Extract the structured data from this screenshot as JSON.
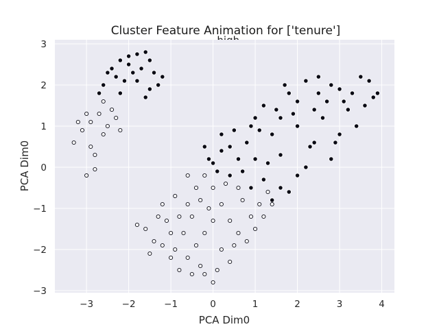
{
  "chart_data": {
    "type": "scatter",
    "title": "Cluster Feature Animation for ['tenure']",
    "subtitle": "_high",
    "xlabel": "PCA Dim0",
    "ylabel": "PCA Dim0",
    "xlim": [
      -3.75,
      4.3
    ],
    "ylim": [
      -3.05,
      3.1
    ],
    "x_ticks": [
      -3,
      -2,
      -1,
      0,
      1,
      2,
      3,
      4
    ],
    "y_ticks": [
      -3,
      -2,
      -1,
      0,
      1,
      2,
      3
    ],
    "x_tick_labels": [
      "−3",
      "−2",
      "−1",
      "0",
      "1",
      "2",
      "3",
      "4"
    ],
    "y_tick_labels": [
      "−3",
      "−2",
      "−1",
      "0",
      "1",
      "2",
      "3"
    ],
    "grid": true,
    "background_color": "#eaeaf2",
    "grid_color": "#ffffff",
    "series": [
      {
        "color": "#0a0a14",
        "edge_color": "#ffffff",
        "description_points": "high tenure (dark)",
        "points": [
          [
            -2.6,
            2.0
          ],
          [
            -2.4,
            2.4
          ],
          [
            -2.2,
            2.6
          ],
          [
            -2.0,
            2.7
          ],
          [
            -1.8,
            2.75
          ],
          [
            -1.6,
            2.8
          ],
          [
            -1.5,
            2.6
          ],
          [
            -2.3,
            2.2
          ],
          [
            -1.9,
            2.3
          ],
          [
            -1.7,
            2.4
          ],
          [
            -2.1,
            2.1
          ],
          [
            -1.4,
            2.3
          ],
          [
            -1.2,
            2.2
          ],
          [
            -1.3,
            2.0
          ],
          [
            -2.5,
            2.3
          ],
          [
            -2.0,
            2.5
          ],
          [
            -1.8,
            2.1
          ],
          [
            -2.2,
            1.8
          ],
          [
            -1.6,
            1.7
          ],
          [
            -2.7,
            1.8
          ],
          [
            -1.5,
            1.9
          ],
          [
            1.0,
            1.2
          ],
          [
            1.5,
            1.4
          ],
          [
            2.0,
            1.6
          ],
          [
            2.5,
            1.8
          ],
          [
            3.0,
            1.9
          ],
          [
            3.5,
            2.2
          ],
          [
            3.8,
            1.7
          ],
          [
            2.2,
            2.1
          ],
          [
            2.8,
            2.0
          ],
          [
            1.8,
            1.8
          ],
          [
            1.2,
            1.5
          ],
          [
            0.5,
            0.9
          ],
          [
            0.2,
            0.4
          ],
          [
            0.8,
            0.6
          ],
          [
            1.4,
            0.8
          ],
          [
            2.0,
            1.0
          ],
          [
            2.6,
            1.2
          ],
          [
            3.2,
            1.4
          ],
          [
            3.6,
            1.5
          ],
          [
            1.0,
            0.2
          ],
          [
            1.6,
            0.3
          ],
          [
            2.4,
            0.6
          ],
          [
            3.0,
            0.8
          ],
          [
            0.0,
            0.1
          ],
          [
            0.4,
            -0.2
          ],
          [
            1.2,
            -0.3
          ],
          [
            2.0,
            -0.2
          ],
          [
            2.8,
            0.2
          ],
          [
            1.8,
            -0.6
          ],
          [
            1.4,
            -0.8
          ],
          [
            2.2,
            0.0
          ],
          [
            3.4,
            1.0
          ],
          [
            0.6,
            0.2
          ],
          [
            -0.2,
            0.5
          ],
          [
            0.2,
            0.8
          ],
          [
            0.9,
            1.0
          ],
          [
            1.6,
            1.2
          ],
          [
            2.4,
            1.4
          ],
          [
            3.1,
            1.6
          ],
          [
            3.3,
            1.8
          ],
          [
            2.7,
            1.6
          ],
          [
            1.9,
            1.3
          ],
          [
            1.1,
            0.9
          ],
          [
            0.4,
            0.5
          ],
          [
            0.9,
            -0.5
          ],
          [
            1.6,
            -0.5
          ],
          [
            2.3,
            0.5
          ],
          [
            2.9,
            0.6
          ],
          [
            3.7,
            2.1
          ],
          [
            3.9,
            1.8
          ],
          [
            2.5,
            2.2
          ],
          [
            1.7,
            2.0
          ],
          [
            -0.1,
            0.2
          ],
          [
            0.1,
            -0.1
          ],
          [
            0.7,
            -0.1
          ],
          [
            1.3,
            0.1
          ]
        ]
      },
      {
        "color": "#ffffff",
        "edge_color": "#0a0a14",
        "description_points": "low tenure (white)",
        "points": [
          [
            -3.3,
            0.6
          ],
          [
            -3.1,
            0.9
          ],
          [
            -2.9,
            1.1
          ],
          [
            -2.7,
            1.3
          ],
          [
            -2.6,
            0.8
          ],
          [
            -2.9,
            0.5
          ],
          [
            -3.2,
            1.1
          ],
          [
            -2.5,
            1.0
          ],
          [
            -2.4,
            1.4
          ],
          [
            -2.3,
            1.2
          ],
          [
            -2.2,
            0.9
          ],
          [
            -2.8,
            0.3
          ],
          [
            -3.0,
            -0.2
          ],
          [
            -2.8,
            -0.05
          ],
          [
            -3.0,
            1.3
          ],
          [
            -2.6,
            1.6
          ],
          [
            -1.0,
            -1.6
          ],
          [
            -0.8,
            -1.2
          ],
          [
            -0.6,
            -0.9
          ],
          [
            -0.4,
            -0.5
          ],
          [
            -0.2,
            -0.2
          ],
          [
            0.0,
            -0.5
          ],
          [
            0.2,
            -0.9
          ],
          [
            0.4,
            -1.3
          ],
          [
            0.6,
            -1.6
          ],
          [
            0.8,
            -1.8
          ],
          [
            1.0,
            -1.5
          ],
          [
            1.2,
            -1.2
          ],
          [
            1.4,
            -0.9
          ],
          [
            -1.2,
            -1.9
          ],
          [
            -1.0,
            -2.2
          ],
          [
            -0.8,
            -2.5
          ],
          [
            -0.6,
            -2.2
          ],
          [
            -0.4,
            -1.9
          ],
          [
            -0.2,
            -1.6
          ],
          [
            0.0,
            -1.3
          ],
          [
            0.2,
            -2.0
          ],
          [
            0.4,
            -2.3
          ],
          [
            -0.2,
            -2.6
          ],
          [
            0.0,
            -2.8
          ],
          [
            -0.3,
            -2.4
          ],
          [
            -1.4,
            -1.8
          ],
          [
            -1.6,
            -1.5
          ],
          [
            -1.3,
            -1.2
          ],
          [
            -0.9,
            -0.7
          ],
          [
            -0.5,
            -1.2
          ],
          [
            0.3,
            -0.4
          ],
          [
            0.7,
            -0.8
          ],
          [
            1.1,
            -0.9
          ],
          [
            -0.7,
            -1.6
          ],
          [
            -0.1,
            -1.0
          ],
          [
            0.5,
            -1.9
          ],
          [
            0.9,
            -1.2
          ],
          [
            -1.1,
            -1.3
          ],
          [
            -0.5,
            -2.6
          ],
          [
            0.1,
            -2.5
          ],
          [
            -1.5,
            -2.1
          ],
          [
            -0.9,
            -2.0
          ],
          [
            -0.3,
            -0.8
          ],
          [
            0.6,
            -0.5
          ],
          [
            1.3,
            -0.6
          ],
          [
            -0.6,
            -0.2
          ],
          [
            -1.8,
            -1.4
          ],
          [
            -1.2,
            -0.9
          ]
        ]
      }
    ]
  }
}
